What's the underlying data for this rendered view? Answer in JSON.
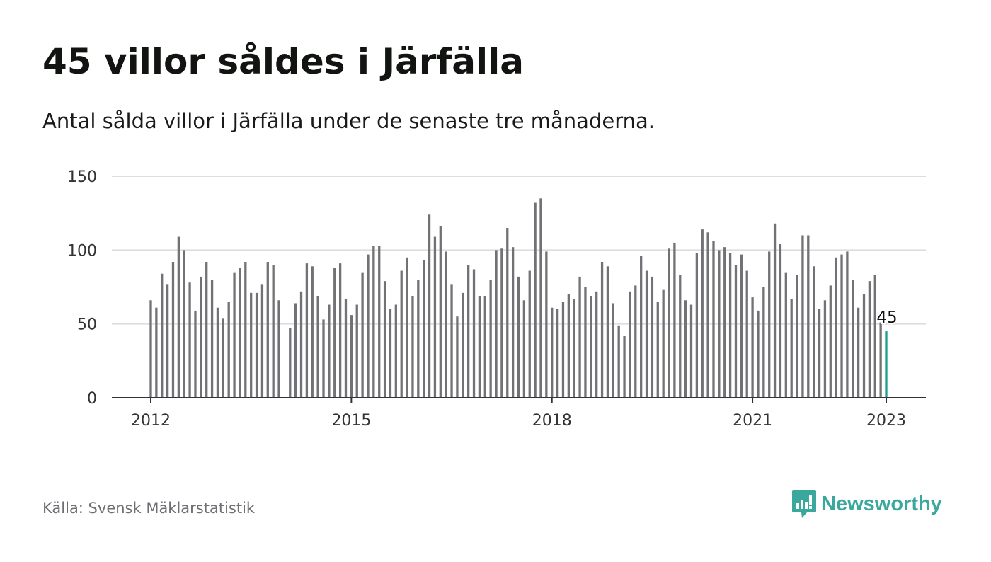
{
  "header": {
    "title": "45 villor såldes i Järfälla",
    "subtitle": "Antal sålda villor i Järfälla under de senaste tre månaderna."
  },
  "footer": {
    "source": "Källa: Svensk Mäklarstatistik",
    "brand": "Newsworthy",
    "brand_icon": "newsworthy-logo-icon"
  },
  "colors": {
    "bar": "#727276",
    "highlight": "#1a9e8f",
    "grid": "#dddddd",
    "axis": "#333333",
    "brand": "#3aa89c"
  },
  "chart_data": {
    "type": "bar",
    "x_start": "2012-01",
    "x_end": "2023-01",
    "x_ticks": [
      "2012",
      "2015",
      "2018",
      "2021",
      "2023"
    ],
    "y_ticks": [
      0,
      50,
      100,
      150
    ],
    "ylim": [
      0,
      150
    ],
    "grid": true,
    "highlight_label": "45",
    "values": [
      66,
      61,
      84,
      77,
      92,
      109,
      100,
      78,
      59,
      82,
      92,
      80,
      61,
      54,
      65,
      85,
      88,
      92,
      71,
      71,
      77,
      92,
      90,
      66,
      null,
      47,
      64,
      72,
      91,
      89,
      69,
      53,
      63,
      88,
      91,
      67,
      56,
      63,
      85,
      97,
      103,
      103,
      79,
      60,
      63,
      86,
      95,
      69,
      80,
      93,
      124,
      109,
      116,
      99,
      77,
      55,
      71,
      90,
      87,
      69,
      69,
      80,
      100,
      101,
      115,
      102,
      82,
      66,
      86,
      132,
      135,
      99,
      61,
      60,
      65,
      70,
      67,
      82,
      75,
      69,
      72,
      92,
      89,
      64,
      49,
      42,
      72,
      76,
      96,
      86,
      82,
      65,
      73,
      101,
      105,
      83,
      66,
      63,
      98,
      114,
      112,
      106,
      100,
      102,
      98,
      90,
      97,
      86,
      68,
      59,
      75,
      99,
      118,
      104,
      85,
      67,
      83,
      110,
      110,
      89,
      60,
      66,
      76,
      95,
      97,
      99,
      80,
      61,
      70,
      79,
      83,
      51,
      45
    ]
  }
}
